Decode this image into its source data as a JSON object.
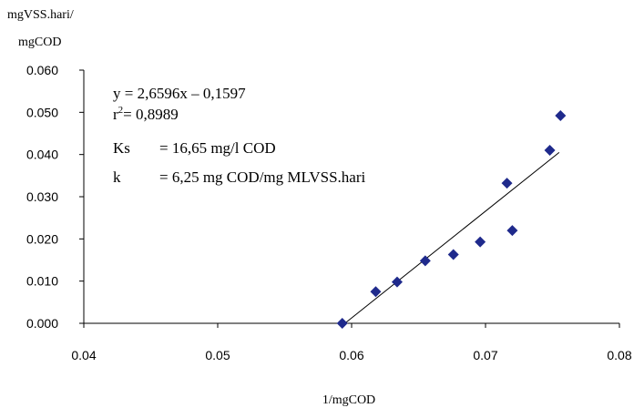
{
  "chart_data": {
    "type": "scatter",
    "ylabel_line1": "mgVSS.hari/",
    "ylabel_line2": "mgCOD",
    "xlabel": "1/mgCOD",
    "xlim": [
      0.04,
      0.08
    ],
    "ylim": [
      0.0,
      0.06
    ],
    "x_ticks": [
      "0.04",
      "0.05",
      "0.06",
      "0.07",
      "0.08"
    ],
    "y_ticks": [
      "0.000",
      "0.010",
      "0.020",
      "0.030",
      "0.040",
      "0.050",
      "0.060"
    ],
    "grid": false,
    "series": [
      {
        "x": [
          0.0593,
          0.0618,
          0.0634,
          0.0655,
          0.0676,
          0.0696,
          0.0716,
          0.072,
          0.0748,
          0.0756
        ],
        "y": [
          0.0,
          0.0075,
          0.0098,
          0.0148,
          0.0163,
          0.0193,
          0.0332,
          0.022,
          0.041,
          0.0492
        ],
        "marker": "diamond",
        "color": "#1f2a8c"
      }
    ],
    "trendline": {
      "x_start": 0.0595,
      "y_start": 0.0,
      "x_end": 0.0755,
      "y_end": 0.0405,
      "color": "#000000"
    },
    "annotations": {
      "equation": "y = 2,6596x – 0,1597",
      "r2_prefix": "r",
      "r2_sup": "2",
      "r2_value": "= 0,8989",
      "ks_label": "Ks",
      "ks_value": "= 16,65 mg/l COD",
      "k_label": "k",
      "k_value": "= 6,25 mg COD/mg MLVSS.hari"
    }
  }
}
